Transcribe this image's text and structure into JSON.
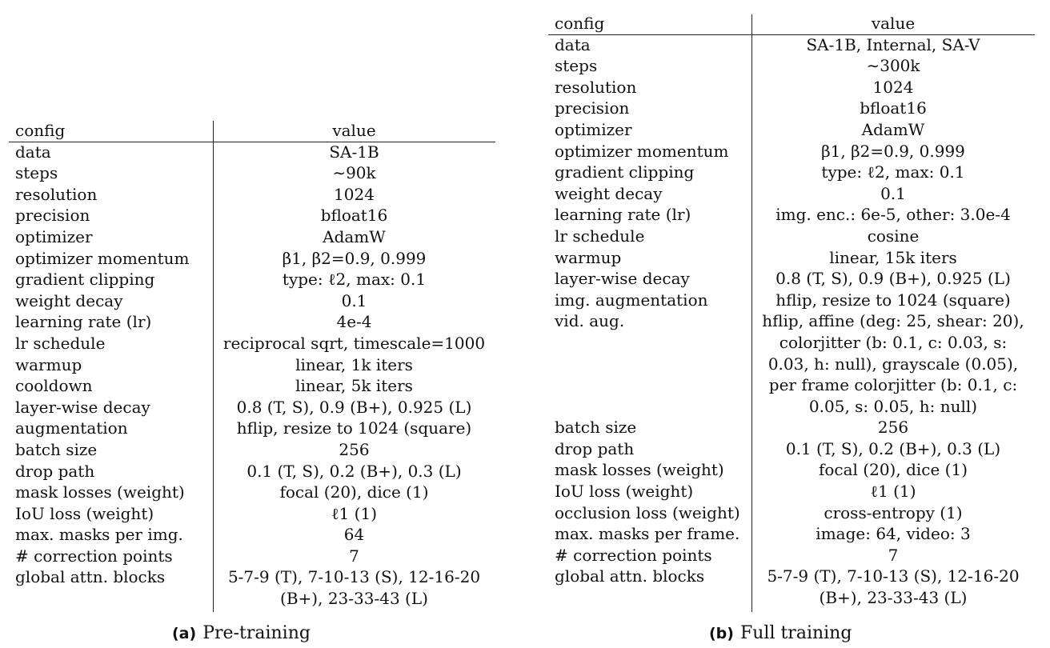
{
  "tables": {
    "a": {
      "caption_label": "(a)",
      "caption_text": "Pre-training",
      "header": {
        "config": "config",
        "value": "value"
      },
      "rows": [
        [
          "data",
          "SA-1B"
        ],
        [
          "steps",
          "∼90k"
        ],
        [
          "resolution",
          "1024"
        ],
        [
          "precision",
          "bfloat16"
        ],
        [
          "optimizer",
          "AdamW"
        ],
        [
          "optimizer momentum",
          "β1, β2=0.9, 0.999"
        ],
        [
          "gradient clipping",
          "type: ℓ2, max: 0.1"
        ],
        [
          "weight decay",
          "0.1"
        ],
        [
          "learning rate (lr)",
          "4e-4"
        ],
        [
          "lr schedule",
          "reciprocal sqrt, timescale=1000"
        ],
        [
          "warmup",
          "linear, 1k iters"
        ],
        [
          "cooldown",
          "linear, 5k iters"
        ],
        [
          "layer-wise decay",
          "0.8 (T, S), 0.9 (B+), 0.925 (L)"
        ],
        [
          "augmentation",
          "hflip, resize to 1024 (square)"
        ],
        [
          "batch size",
          "256"
        ],
        [
          "drop path",
          "0.1 (T, S), 0.2 (B+), 0.3 (L)"
        ],
        [
          "mask losses (weight)",
          "focal (20), dice (1)"
        ],
        [
          "IoU loss (weight)",
          "ℓ1 (1)"
        ],
        [
          "max. masks per img.",
          "64"
        ],
        [
          "# correction points",
          "7"
        ],
        [
          "global attn. blocks",
          "5-7-9 (T), 7-10-13 (S), 12-16-20"
        ],
        [
          "",
          "(B+), 23-33-43 (L)"
        ]
      ]
    },
    "b": {
      "caption_label": "(b)",
      "caption_text": "Full training",
      "header": {
        "config": "config",
        "value": "value"
      },
      "rows": [
        [
          "data",
          "SA-1B, Internal, SA-V"
        ],
        [
          "steps",
          "∼300k"
        ],
        [
          "resolution",
          "1024"
        ],
        [
          "precision",
          "bfloat16"
        ],
        [
          "optimizer",
          "AdamW"
        ],
        [
          "optimizer momentum",
          "β1, β2=0.9, 0.999"
        ],
        [
          "gradient clipping",
          "type: ℓ2, max: 0.1"
        ],
        [
          "weight decay",
          "0.1"
        ],
        [
          "learning rate (lr)",
          "img. enc.: 6e-5, other: 3.0e-4"
        ],
        [
          "lr schedule",
          "cosine"
        ],
        [
          "warmup",
          "linear, 15k iters"
        ],
        [
          "layer-wise decay",
          "0.8 (T, S), 0.9 (B+), 0.925 (L)"
        ],
        [
          "img. augmentation",
          "hflip, resize to 1024 (square)"
        ],
        [
          "vid. aug.",
          "hflip, affine (deg: 25, shear: 20),"
        ],
        [
          "",
          "colorjitter (b: 0.1, c: 0.03, s:"
        ],
        [
          "",
          "0.03, h: null), grayscale (0.05),"
        ],
        [
          "",
          "per frame colorjitter (b: 0.1, c:"
        ],
        [
          "",
          "0.05, s: 0.05, h: null)"
        ],
        [
          "batch size",
          "256"
        ],
        [
          "drop path",
          "0.1 (T, S), 0.2 (B+), 0.3 (L)"
        ],
        [
          "mask losses (weight)",
          "focal (20), dice (1)"
        ],
        [
          "IoU loss (weight)",
          "ℓ1 (1)"
        ],
        [
          "occlusion loss (weight)",
          "cross-entropy (1)"
        ],
        [
          "max. masks per frame.",
          "image: 64, video: 3"
        ],
        [
          "# correction points",
          "7"
        ],
        [
          "global attn. blocks",
          "5-7-9 (T), 7-10-13 (S), 12-16-20"
        ],
        [
          "",
          "(B+), 23-33-43 (L)"
        ]
      ]
    }
  }
}
